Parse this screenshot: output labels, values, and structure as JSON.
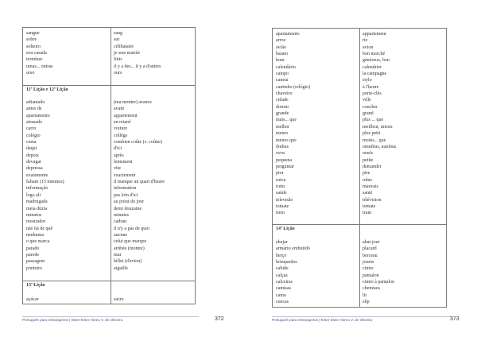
{
  "pages": [
    {
      "page_number": "372",
      "footer": "Português para estrangeiros | Ester Ester Abreu V. de Oliveira",
      "sections": [
        {
          "header": "",
          "pt": [
            "sangue",
            "sobre",
            "solteiro",
            "sou casada",
            "terminar",
            "umas... outras",
            "urso"
          ],
          "fr": [
            "sang",
            "sur",
            "célibataire",
            "je suis mariée",
            "finir",
            "il y a des... il y a d'autres",
            "ours"
          ]
        },
        {
          "header": "11ª Lição e 12ª Lição",
          "pt": [
            "adiantado",
            "antes de",
            "apartamento",
            "atrasado",
            "carro",
            "colégio",
            "custa",
            "daqui",
            "depois",
            "devagar",
            "depressa",
            "exatamente",
            "faltam (15 minutos)",
            "informação",
            "logo ali",
            "madrugada",
            "meia dúzia",
            "minutos",
            "mostrador",
            "não há de quê",
            "nenhuma",
            "o que marca",
            "parado",
            "parede",
            "passagem",
            "ponteiro"
          ],
          "fr": [
            "(ma montre) avance",
            "avant",
            "appartement",
            "en retard",
            "voiture",
            "collège",
            "combien coûte (v. coûter)",
            "d'ici",
            "après",
            "lentement",
            "vite",
            "exactement",
            "il manque un quart d'heure",
            "information",
            "pas loin d'ici",
            "au point du jour",
            "demi douzaine",
            "minutes",
            "cadran",
            "il n'y a pas de quoi",
            "aucune",
            "celui que marque",
            "arrêtée (montre)",
            "mur",
            "billet (d'avion)",
            "aiguille"
          ]
        },
        {
          "header": "13ª Lição",
          "pt": [
            "açúcar"
          ],
          "fr": [
            "sucre"
          ]
        }
      ]
    },
    {
      "page_number": "373",
      "footer": "Português para estrangeiros | Ester Ester Abreu V. de Oliveira",
      "sections": [
        {
          "header": "",
          "pt": [
            "apartamento",
            "arroz",
            "avião",
            "barato",
            "bom",
            "calendário",
            "campo",
            "caneta",
            "cantinho (relógio)",
            "chaveiro",
            "cidade",
            "dormir",
            "grande",
            "mais... que",
            "melhor",
            "menor",
            "menos que",
            "ônibus",
            "ovos",
            "pequena",
            "perguntar",
            "pior",
            "ruiva",
            "ruim",
            "saúde",
            "televisão",
            "tomate",
            "trem"
          ],
          "fr": [
            "appartement",
            "riz",
            "avion",
            "bon marché",
            "généreux, bon",
            "calendrier",
            "la campagne",
            "stylo",
            "à l'heure",
            "porte-clés",
            "ville",
            "coucher",
            "grand",
            "plus ... que",
            "meilleur, mieux",
            "plus petit",
            "moins... que",
            "omnibus, autobus",
            "oeufs",
            "petite",
            "demander",
            "pire",
            "rubis",
            "mauvais",
            "santé",
            "télévision",
            "tomate",
            "train"
          ]
        },
        {
          "header": "14ª Lição",
          "pt": [
            "abajur",
            "armário embutido",
            "berço",
            "brinquedos",
            "cabide",
            "calças",
            "calceiras",
            "camisas",
            "cama",
            "cuecas"
          ],
          "fr": [
            "abat-jour",
            "placard",
            "berceau",
            "jouets",
            "cintre",
            "pantalon",
            "cintre à pantalon",
            "chemises",
            "lit",
            "slip"
          ]
        }
      ]
    }
  ]
}
